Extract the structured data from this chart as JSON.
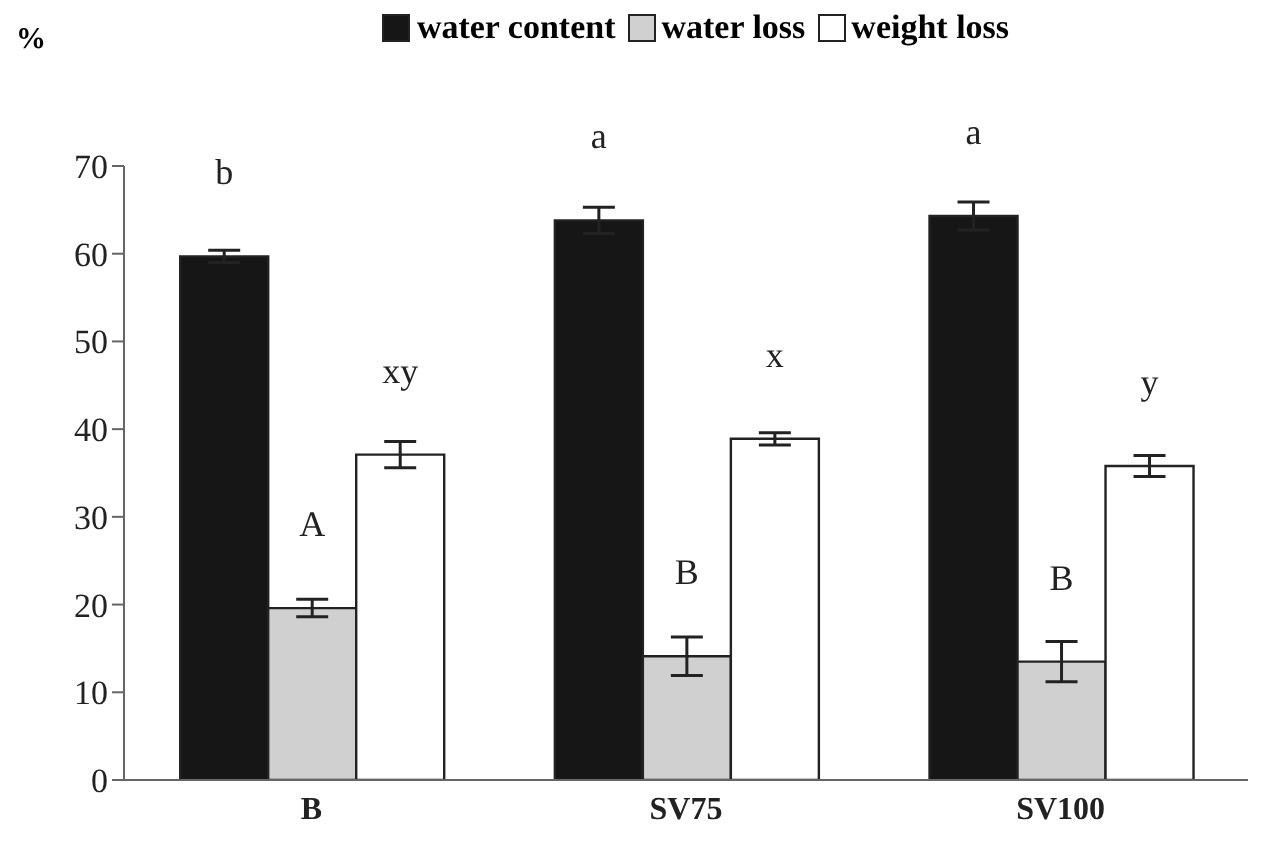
{
  "chart_data": {
    "type": "bar",
    "ylabel": "%",
    "categories": [
      "B",
      "SV75",
      "SV100"
    ],
    "series": [
      {
        "name": "water content",
        "color": "#161616",
        "values": [
          59.7,
          63.8,
          64.3
        ],
        "errors": [
          0.7,
          1.5,
          1.6
        ],
        "value_labels": [
          "b",
          "a",
          "a"
        ]
      },
      {
        "name": "water loss",
        "color": "#d0d0d0",
        "values": [
          19.6,
          14.1,
          13.5
        ],
        "errors": [
          1.0,
          2.2,
          2.3
        ],
        "value_labels": [
          "A",
          "B",
          "B"
        ]
      },
      {
        "name": "weight loss",
        "color": "#ffffff",
        "values": [
          37.1,
          38.9,
          35.8
        ],
        "errors": [
          1.5,
          0.7,
          1.2
        ],
        "value_labels": [
          "xy",
          "x",
          "y"
        ]
      }
    ],
    "ylim": [
      0,
      70
    ],
    "yticks": [
      0,
      10,
      20,
      30,
      40,
      50,
      60,
      70
    ],
    "legend": "top",
    "grid": false
  }
}
